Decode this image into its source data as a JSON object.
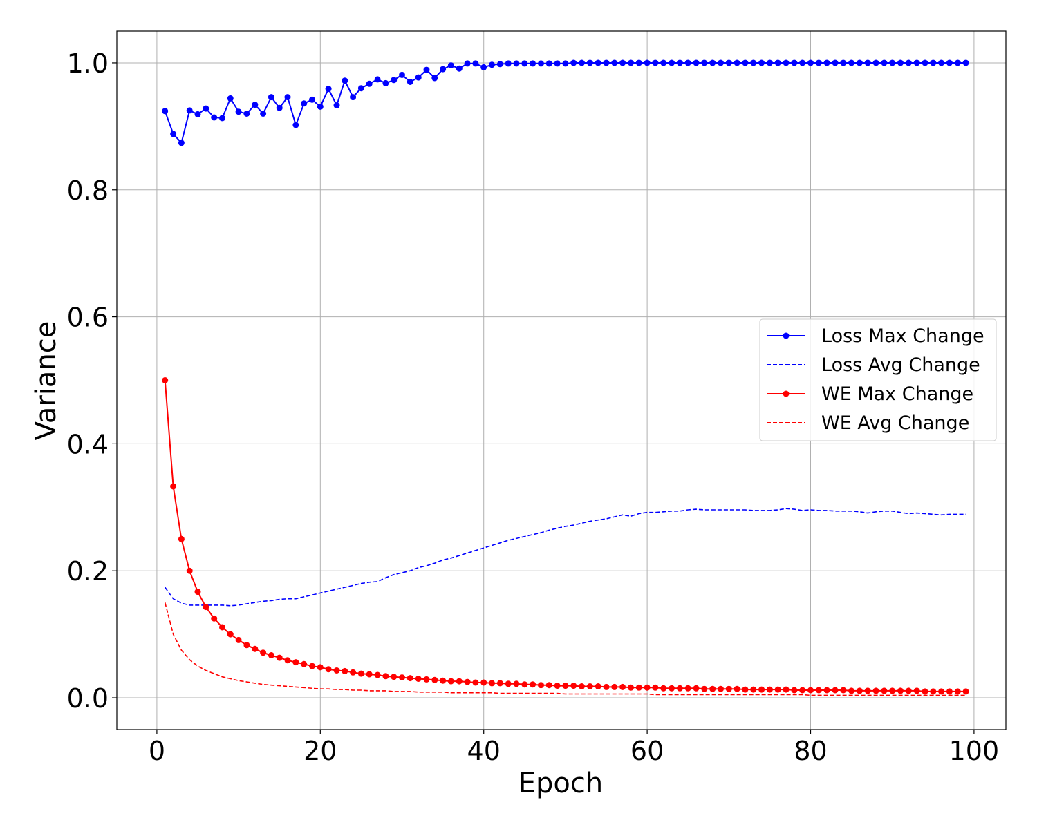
{
  "chart_data": {
    "type": "line",
    "title": "",
    "xlabel": "Epoch",
    "ylabel": "Variance",
    "xlim": [
      -4.9,
      103.9
    ],
    "ylim": [
      -0.05,
      1.05
    ],
    "grid": true,
    "legend_position": "center-right",
    "x_ticks": [
      0,
      20,
      40,
      60,
      80,
      100
    ],
    "x_tick_labels": [
      "0",
      "20",
      "40",
      "60",
      "80",
      "100"
    ],
    "y_ticks": [
      0.0,
      0.2,
      0.4,
      0.6,
      0.8,
      1.0
    ],
    "y_tick_labels": [
      "0.0",
      "0.2",
      "0.4",
      "0.6",
      "0.8",
      "1.0"
    ],
    "x": [
      1,
      2,
      3,
      4,
      5,
      6,
      7,
      8,
      9,
      10,
      11,
      12,
      13,
      14,
      15,
      16,
      17,
      18,
      19,
      20,
      21,
      22,
      23,
      24,
      25,
      26,
      27,
      28,
      29,
      30,
      31,
      32,
      33,
      34,
      35,
      36,
      37,
      38,
      39,
      40,
      41,
      42,
      43,
      44,
      45,
      46,
      47,
      48,
      49,
      50,
      51,
      52,
      53,
      54,
      55,
      56,
      57,
      58,
      59,
      60,
      61,
      62,
      63,
      64,
      65,
      66,
      67,
      68,
      69,
      70,
      71,
      72,
      73,
      74,
      75,
      76,
      77,
      78,
      79,
      80,
      81,
      82,
      83,
      84,
      85,
      86,
      87,
      88,
      89,
      90,
      91,
      92,
      93,
      94,
      95,
      96,
      97,
      98,
      99
    ],
    "series": [
      {
        "name": "Loss Max Change",
        "color": "#0000ff",
        "style": "solid",
        "marker": true,
        "values": [
          0.924,
          0.888,
          0.874,
          0.925,
          0.919,
          0.928,
          0.914,
          0.913,
          0.944,
          0.923,
          0.92,
          0.934,
          0.92,
          0.946,
          0.929,
          0.946,
          0.902,
          0.936,
          0.942,
          0.931,
          0.959,
          0.933,
          0.972,
          0.946,
          0.96,
          0.967,
          0.974,
          0.968,
          0.973,
          0.981,
          0.97,
          0.977,
          0.989,
          0.976,
          0.99,
          0.996,
          0.991,
          0.999,
          0.999,
          0.993,
          0.997,
          0.998,
          0.999,
          0.999,
          0.999,
          0.999,
          0.999,
          0.999,
          0.999,
          0.999,
          1.0,
          1.0,
          1.0,
          1.0,
          1.0,
          1.0,
          1.0,
          1.0,
          1.0,
          1.0,
          1.0,
          1.0,
          1.0,
          1.0,
          1.0,
          1.0,
          1.0,
          1.0,
          1.0,
          1.0,
          1.0,
          1.0,
          1.0,
          1.0,
          1.0,
          1.0,
          1.0,
          1.0,
          1.0,
          1.0,
          1.0,
          1.0,
          1.0,
          1.0,
          1.0,
          1.0,
          1.0,
          1.0,
          1.0,
          1.0,
          1.0,
          1.0,
          1.0,
          1.0,
          1.0,
          1.0,
          1.0,
          1.0,
          1.0
        ]
      },
      {
        "name": "Loss Avg Change",
        "color": "#0000ff",
        "style": "dashed",
        "marker": false,
        "values": [
          0.174,
          0.156,
          0.149,
          0.146,
          0.146,
          0.146,
          0.146,
          0.146,
          0.145,
          0.146,
          0.148,
          0.15,
          0.152,
          0.153,
          0.155,
          0.156,
          0.156,
          0.159,
          0.162,
          0.165,
          0.168,
          0.171,
          0.174,
          0.177,
          0.18,
          0.182,
          0.183,
          0.189,
          0.194,
          0.197,
          0.2,
          0.205,
          0.208,
          0.212,
          0.217,
          0.22,
          0.224,
          0.228,
          0.232,
          0.236,
          0.24,
          0.244,
          0.248,
          0.251,
          0.254,
          0.257,
          0.26,
          0.264,
          0.267,
          0.27,
          0.272,
          0.275,
          0.278,
          0.28,
          0.282,
          0.285,
          0.288,
          0.286,
          0.29,
          0.292,
          0.292,
          0.293,
          0.294,
          0.294,
          0.296,
          0.297,
          0.296,
          0.296,
          0.296,
          0.296,
          0.296,
          0.296,
          0.295,
          0.295,
          0.295,
          0.296,
          0.298,
          0.297,
          0.295,
          0.296,
          0.295,
          0.295,
          0.294,
          0.294,
          0.294,
          0.293,
          0.291,
          0.293,
          0.294,
          0.294,
          0.292,
          0.29,
          0.291,
          0.29,
          0.289,
          0.288,
          0.289,
          0.289,
          0.289
        ]
      },
      {
        "name": "WE Max Change",
        "color": "#ff0000",
        "style": "solid",
        "marker": true,
        "values": [
          0.5,
          0.333,
          0.25,
          0.2,
          0.167,
          0.143,
          0.125,
          0.111,
          0.1,
          0.091,
          0.083,
          0.077,
          0.071,
          0.067,
          0.063,
          0.059,
          0.056,
          0.053,
          0.05,
          0.048,
          0.045,
          0.043,
          0.042,
          0.04,
          0.038,
          0.037,
          0.036,
          0.034,
          0.033,
          0.032,
          0.031,
          0.03,
          0.029,
          0.028,
          0.027,
          0.026,
          0.026,
          0.025,
          0.024,
          0.024,
          0.023,
          0.023,
          0.022,
          0.022,
          0.021,
          0.021,
          0.02,
          0.02,
          0.019,
          0.019,
          0.019,
          0.018,
          0.018,
          0.018,
          0.017,
          0.017,
          0.017,
          0.016,
          0.016,
          0.016,
          0.016,
          0.015,
          0.015,
          0.015,
          0.015,
          0.015,
          0.014,
          0.014,
          0.014,
          0.014,
          0.014,
          0.013,
          0.013,
          0.013,
          0.013,
          0.013,
          0.013,
          0.012,
          0.012,
          0.012,
          0.012,
          0.012,
          0.012,
          0.012,
          0.011,
          0.011,
          0.011,
          0.011,
          0.011,
          0.011,
          0.011,
          0.011,
          0.011,
          0.01,
          0.01,
          0.01,
          0.01,
          0.01,
          0.01
        ]
      },
      {
        "name": "WE Avg Change",
        "color": "#ff0000",
        "style": "dashed",
        "marker": false,
        "values": [
          0.15,
          0.1,
          0.075,
          0.06,
          0.05,
          0.043,
          0.038,
          0.033,
          0.03,
          0.027,
          0.025,
          0.023,
          0.021,
          0.02,
          0.019,
          0.018,
          0.017,
          0.016,
          0.015,
          0.014,
          0.014,
          0.013,
          0.013,
          0.012,
          0.012,
          0.011,
          0.011,
          0.011,
          0.01,
          0.01,
          0.01,
          0.009,
          0.009,
          0.009,
          0.009,
          0.008,
          0.008,
          0.008,
          0.008,
          0.008,
          0.008,
          0.007,
          0.007,
          0.007,
          0.007,
          0.007,
          0.007,
          0.007,
          0.007,
          0.006,
          0.006,
          0.006,
          0.006,
          0.006,
          0.006,
          0.006,
          0.006,
          0.006,
          0.006,
          0.006,
          0.005,
          0.005,
          0.005,
          0.005,
          0.005,
          0.005,
          0.005,
          0.005,
          0.005,
          0.005,
          0.005,
          0.005,
          0.005,
          0.005,
          0.005,
          0.005,
          0.005,
          0.005,
          0.005,
          0.004,
          0.004,
          0.004,
          0.004,
          0.004,
          0.004,
          0.004,
          0.004,
          0.004,
          0.004,
          0.004,
          0.004,
          0.004,
          0.004,
          0.004,
          0.004,
          0.004,
          0.004,
          0.004,
          0.004
        ]
      }
    ]
  }
}
